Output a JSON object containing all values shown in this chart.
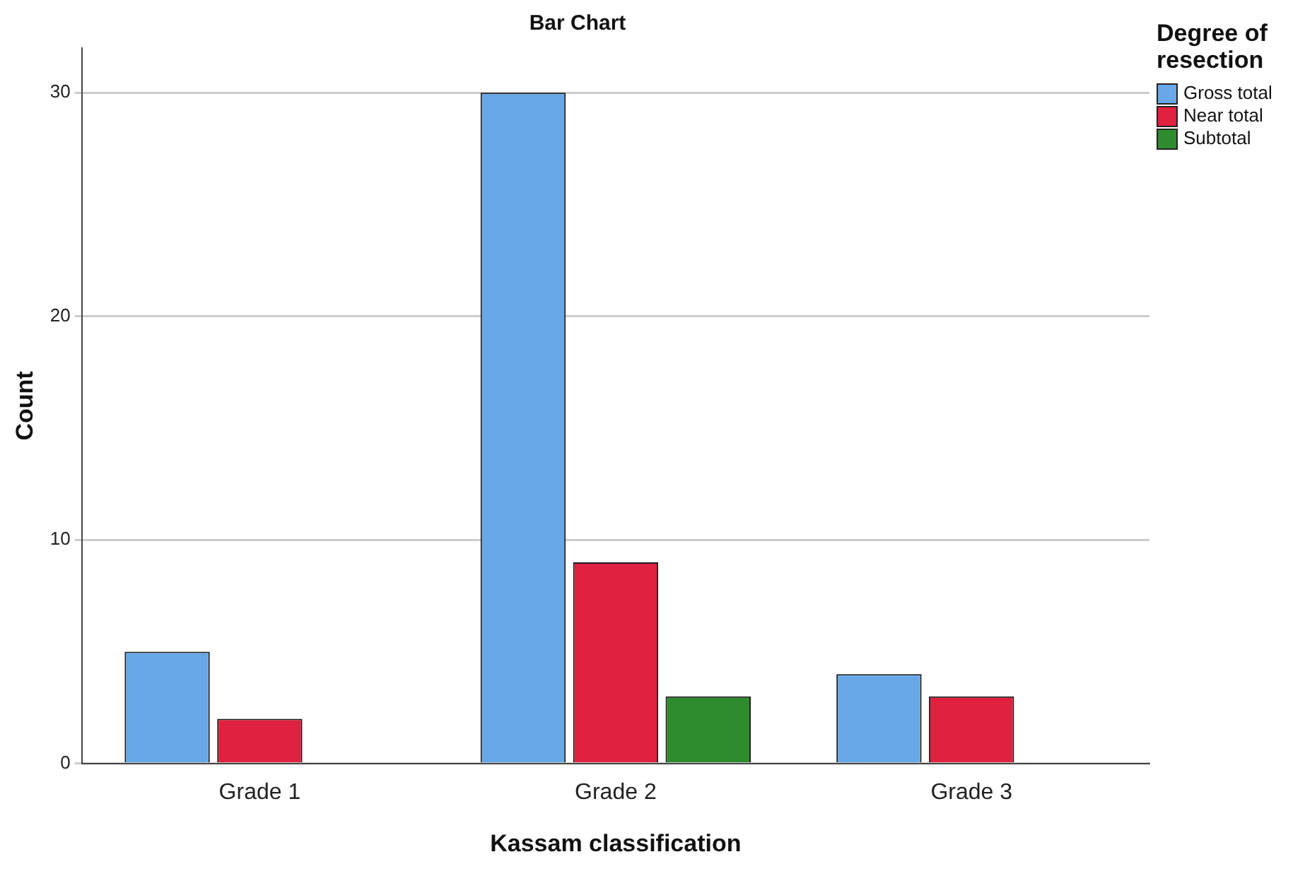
{
  "chart_data": {
    "type": "bar",
    "title": "Bar Chart",
    "xlabel": "Kassam classification",
    "ylabel": "Count",
    "legend_title": "Degree of resection",
    "categories": [
      "Grade 1",
      "Grade 2",
      "Grade 3"
    ],
    "series": [
      {
        "name": "Gross total",
        "color": "#68a8e8",
        "values": [
          5,
          30,
          4
        ]
      },
      {
        "name": "Near total",
        "color": "#e0213f",
        "values": [
          2,
          9,
          3
        ]
      },
      {
        "name": "Subtotal",
        "color": "#2e8b2e",
        "values": [
          null,
          3,
          null
        ]
      }
    ],
    "ylim": [
      0,
      32
    ],
    "yticks": [
      0,
      10,
      20,
      30
    ],
    "grid": "y",
    "legend": "top right"
  }
}
